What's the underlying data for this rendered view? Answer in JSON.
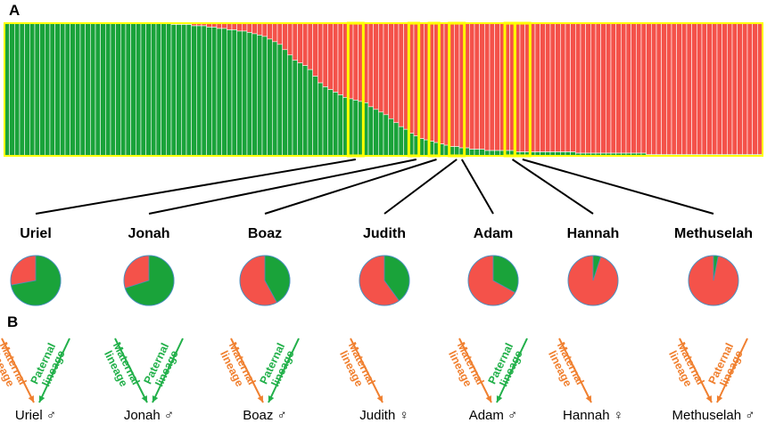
{
  "panels": {
    "a": "A",
    "b": "B"
  },
  "colors": {
    "green": "#1aa33a",
    "red": "#f4524a",
    "highlight": "#ffff00",
    "maternal": "#f08030",
    "paternal": "#22b04a",
    "connector": "#000000"
  },
  "chart_data": {
    "type": "bar",
    "stacked": true,
    "ylim": [
      0,
      1
    ],
    "series": [
      {
        "color": "green",
        "values": [
          1.0,
          1.0,
          1.0,
          1.0,
          1.0,
          1.0,
          1.0,
          1.0,
          1.0,
          1.0,
          1.0,
          1.0,
          1.0,
          1.0,
          1.0,
          1.0,
          1.0,
          1.0,
          1.0,
          1.0,
          1.0,
          1.0,
          1.0,
          1.0,
          1.0,
          1.0,
          1.0,
          1.0,
          1.0,
          1.0,
          1.0,
          1.0,
          1.0,
          0.99,
          0.99,
          0.99,
          0.99,
          0.98,
          0.98,
          0.98,
          0.97,
          0.97,
          0.96,
          0.96,
          0.95,
          0.95,
          0.94,
          0.94,
          0.93,
          0.92,
          0.91,
          0.9,
          0.88,
          0.86,
          0.84,
          0.8,
          0.76,
          0.72,
          0.7,
          0.68,
          0.65,
          0.6,
          0.55,
          0.52,
          0.5,
          0.48,
          0.46,
          0.44,
          0.43,
          0.42,
          0.41,
          0.4,
          0.37,
          0.35,
          0.33,
          0.31,
          0.28,
          0.25,
          0.22,
          0.2,
          0.17,
          0.15,
          0.13,
          0.12,
          0.11,
          0.1,
          0.09,
          0.08,
          0.07,
          0.07,
          0.06,
          0.06,
          0.05,
          0.05,
          0.05,
          0.04,
          0.04,
          0.04,
          0.04,
          0.04,
          0.04,
          0.03,
          0.03,
          0.03,
          0.03,
          0.03,
          0.03,
          0.03,
          0.03,
          0.03,
          0.03,
          0.03,
          0.03,
          0.02,
          0.02,
          0.02,
          0.02,
          0.02,
          0.02,
          0.02,
          0.02,
          0.02,
          0.02,
          0.02,
          0.02,
          0.02,
          0.02,
          0.01,
          0.01,
          0.01,
          0.01,
          0.01,
          0.01,
          0.01,
          0.01,
          0.01,
          0.01,
          0.01,
          0.01,
          0.01,
          0.01,
          0.01,
          0.01,
          0.01,
          0.01,
          0.01,
          0.01,
          0.01,
          0.01,
          0.01
        ]
      },
      {
        "color": "red",
        "values": "complement"
      }
    ],
    "highlighted_bars": [
      {
        "start": 68,
        "width": 3
      },
      {
        "start": 80,
        "width": 2
      },
      {
        "start": 84,
        "width": 2
      },
      {
        "start": 88,
        "width": 3
      },
      {
        "start": 99,
        "width": 2
      },
      {
        "start": 101,
        "width": 3
      }
    ],
    "individuals": [
      {
        "name": "Uriel",
        "green": 0.72,
        "sex": "♂",
        "lineages": [
          "maternal",
          "paternal"
        ],
        "maternal_color": "maternal",
        "paternal_color": "paternal",
        "bar": 69
      },
      {
        "name": "Jonah",
        "green": 0.7,
        "sex": "♂",
        "lineages": [
          "maternal",
          "paternal"
        ],
        "maternal_color": "paternal",
        "paternal_color": "paternal",
        "bar": 81
      },
      {
        "name": "Boaz",
        "green": 0.42,
        "sex": "♂",
        "lineages": [
          "maternal",
          "paternal"
        ],
        "maternal_color": "maternal",
        "paternal_color": "paternal",
        "bar": 85
      },
      {
        "name": "Judith",
        "green": 0.4,
        "sex": "♀",
        "lineages": [
          "maternal"
        ],
        "maternal_color": "maternal",
        "bar": 89
      },
      {
        "name": "Adam",
        "green": 0.33,
        "sex": "♂",
        "lineages": [
          "maternal",
          "paternal"
        ],
        "maternal_color": "maternal",
        "paternal_color": "paternal",
        "bar": 90
      },
      {
        "name": "Hannah",
        "green": 0.05,
        "sex": "♀",
        "lineages": [
          "maternal"
        ],
        "maternal_color": "maternal",
        "bar": 100
      },
      {
        "name": "Methuselah",
        "green": 0.03,
        "sex": "♂",
        "lineages": [
          "maternal",
          "paternal"
        ],
        "maternal_color": "maternal",
        "paternal_color": "maternal",
        "bar": 102
      }
    ],
    "lineage_text": {
      "maternal": [
        "Maternal",
        "lineage"
      ],
      "paternal": [
        "Paternal",
        "lineage"
      ]
    }
  }
}
